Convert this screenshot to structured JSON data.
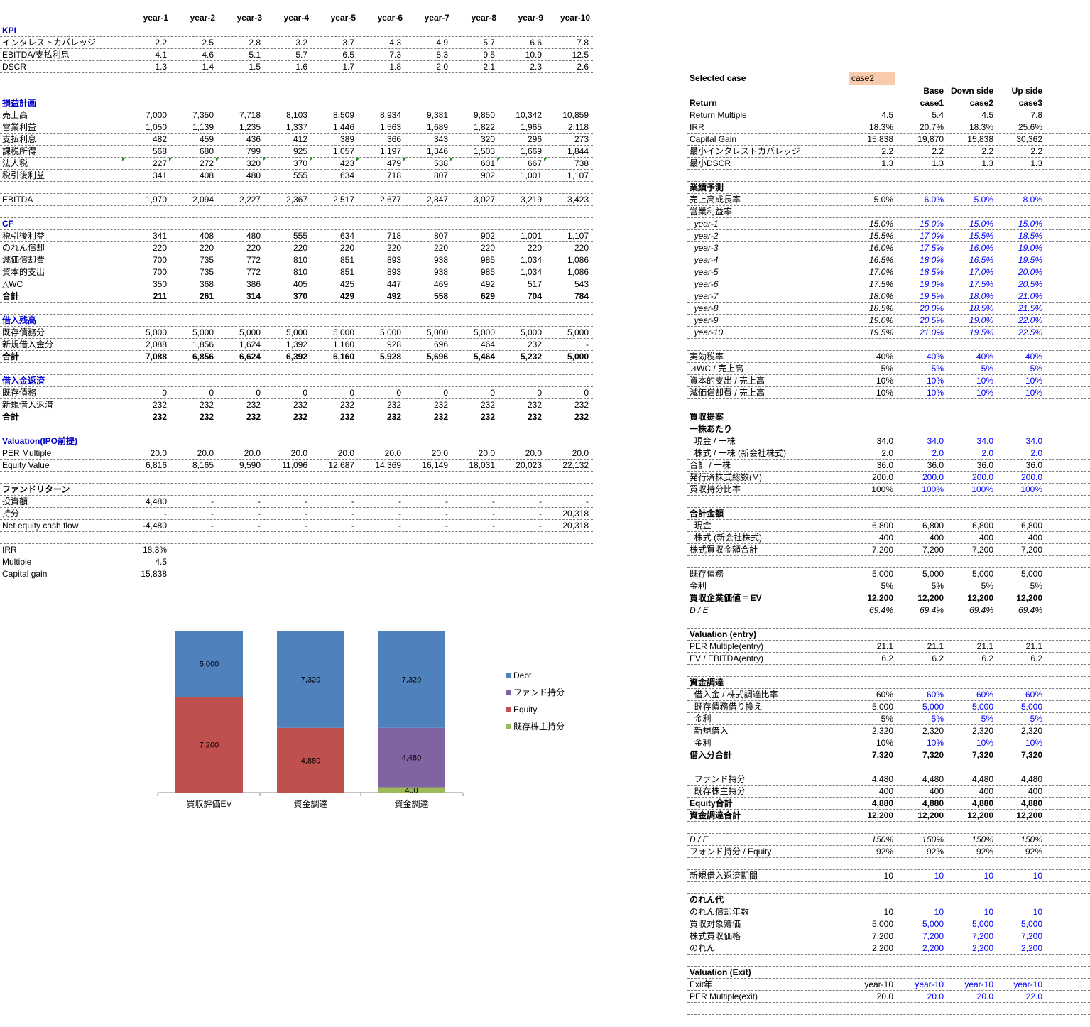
{
  "left": {
    "years": [
      "year-1",
      "year-2",
      "year-3",
      "year-4",
      "year-5",
      "year-6",
      "year-7",
      "year-8",
      "year-9",
      "year-10"
    ],
    "sections": [
      {
        "type": "header",
        "label": "KPI",
        "blue": true
      },
      {
        "label": "インタレストカバレッジ",
        "values": [
          "2.2",
          "2.5",
          "2.8",
          "3.2",
          "3.7",
          "4.3",
          "4.9",
          "5.7",
          "6.6",
          "7.8"
        ]
      },
      {
        "label": "EBITDA/支払利息",
        "values": [
          "4.1",
          "4.6",
          "5.1",
          "5.7",
          "6.5",
          "7.3",
          "8.3",
          "9.5",
          "10.9",
          "12.5"
        ]
      },
      {
        "label": "DSCR",
        "values": [
          "1.3",
          "1.4",
          "1.5",
          "1.6",
          "1.7",
          "1.8",
          "2.0",
          "2.1",
          "2.3",
          "2.6"
        ]
      },
      {
        "type": "blank"
      },
      {
        "type": "blank"
      },
      {
        "type": "header",
        "label": "損益計画",
        "blue": true
      },
      {
        "label": "売上高",
        "values": [
          "7,000",
          "7,350",
          "7,718",
          "8,103",
          "8,509",
          "8,934",
          "9,381",
          "9,850",
          "10,342",
          "10,859"
        ]
      },
      {
        "label": "営業利益",
        "values": [
          "1,050",
          "1,139",
          "1,235",
          "1,337",
          "1,446",
          "1,563",
          "1,689",
          "1,822",
          "1,965",
          "2,118"
        ]
      },
      {
        "label": "支払利息",
        "values": [
          "482",
          "459",
          "436",
          "412",
          "389",
          "366",
          "343",
          "320",
          "296",
          "273"
        ]
      },
      {
        "label": "課税所得",
        "values": [
          "568",
          "680",
          "799",
          "925",
          "1,057",
          "1,197",
          "1,346",
          "1,503",
          "1,669",
          "1,844"
        ]
      },
      {
        "label": "法人税",
        "values": [
          "227",
          "272",
          "320",
          "370",
          "423",
          "479",
          "538",
          "601",
          "667",
          "738"
        ],
        "flag": true
      },
      {
        "label": "税引後利益",
        "values": [
          "341",
          "408",
          "480",
          "555",
          "634",
          "718",
          "807",
          "902",
          "1,001",
          "1,107"
        ]
      },
      {
        "type": "blank"
      },
      {
        "label": "EBITDA",
        "values": [
          "1,970",
          "2,094",
          "2,227",
          "2,367",
          "2,517",
          "2,677",
          "2,847",
          "3,027",
          "3,219",
          "3,423"
        ]
      },
      {
        "type": "blank"
      },
      {
        "type": "header",
        "label": "CF",
        "blue": true
      },
      {
        "label": "税引後利益",
        "values": [
          "341",
          "408",
          "480",
          "555",
          "634",
          "718",
          "807",
          "902",
          "1,001",
          "1,107"
        ]
      },
      {
        "label": "のれん償却",
        "values": [
          "220",
          "220",
          "220",
          "220",
          "220",
          "220",
          "220",
          "220",
          "220",
          "220"
        ]
      },
      {
        "label": "減価償却費",
        "values": [
          "700",
          "735",
          "772",
          "810",
          "851",
          "893",
          "938",
          "985",
          "1,034",
          "1,086"
        ]
      },
      {
        "label": "資本的支出",
        "values": [
          "700",
          "735",
          "772",
          "810",
          "851",
          "893",
          "938",
          "985",
          "1,034",
          "1,086"
        ]
      },
      {
        "label": "△WC",
        "values": [
          "350",
          "368",
          "386",
          "405",
          "425",
          "447",
          "469",
          "492",
          "517",
          "543"
        ]
      },
      {
        "label": "合計",
        "values": [
          "211",
          "261",
          "314",
          "370",
          "429",
          "492",
          "558",
          "629",
          "704",
          "784"
        ],
        "bold": true
      },
      {
        "type": "blank"
      },
      {
        "type": "header",
        "label": "借入残高",
        "blue": true
      },
      {
        "label": " 既存債務分",
        "values": [
          "5,000",
          "5,000",
          "5,000",
          "5,000",
          "5,000",
          "5,000",
          "5,000",
          "5,000",
          "5,000",
          "5,000"
        ]
      },
      {
        "label": "新規借入金分",
        "values": [
          "2,088",
          "1,856",
          "1,624",
          "1,392",
          "1,160",
          "928",
          "696",
          "464",
          "232",
          "-"
        ]
      },
      {
        "label": "合計",
        "values": [
          "7,088",
          "6,856",
          "6,624",
          "6,392",
          "6,160",
          "5,928",
          "5,696",
          "5,464",
          "5,232",
          "5,000"
        ],
        "bold": true
      },
      {
        "type": "blank"
      },
      {
        "type": "header",
        "label": "借入金返済",
        "blue": true
      },
      {
        "label": "既存債務",
        "values": [
          "0",
          "0",
          "0",
          "0",
          "0",
          "0",
          "0",
          "0",
          "0",
          "0"
        ]
      },
      {
        "label": "新規借入返済",
        "values": [
          "232",
          "232",
          "232",
          "232",
          "232",
          "232",
          "232",
          "232",
          "232",
          "232"
        ]
      },
      {
        "label": "合計",
        "values": [
          "232",
          "232",
          "232",
          "232",
          "232",
          "232",
          "232",
          "232",
          "232",
          "232"
        ],
        "bold": true
      },
      {
        "type": "blank"
      },
      {
        "type": "header",
        "label": "Valuation(IPO前提)",
        "blue": true
      },
      {
        "label": "PER Multiple",
        "values": [
          "20.0",
          "20.0",
          "20.0",
          "20.0",
          "20.0",
          "20.0",
          "20.0",
          "20.0",
          "20.0",
          "20.0"
        ]
      },
      {
        "label": "Equity Value",
        "values": [
          "6,816",
          "8,165",
          "9,590",
          "11,096",
          "12,687",
          "14,369",
          "16,149",
          "18,031",
          "20,023",
          "22,132"
        ]
      },
      {
        "type": "blank"
      },
      {
        "type": "header",
        "label": "ファンドリターン",
        "blue": false
      },
      {
        "label": "投資額",
        "values": [
          "4,480",
          "-",
          "-",
          "-",
          "-",
          "-",
          "-",
          "-",
          "-",
          "-"
        ]
      },
      {
        "label": "持分",
        "values": [
          "-",
          "-",
          "-",
          "-",
          "-",
          "-",
          "-",
          "-",
          "-",
          "20,318"
        ]
      },
      {
        "label": "Net equity cash flow",
        "values": [
          "-4,480",
          "-",
          "-",
          "-",
          "-",
          "-",
          "-",
          "-",
          "-",
          "20,318"
        ]
      },
      {
        "type": "blank"
      },
      {
        "label": "IRR",
        "values": [
          "18.3%"
        ],
        "nob": true
      },
      {
        "label": "Multiple",
        "values": [
          "4.5"
        ],
        "nob": true
      },
      {
        "label": "Capital gain",
        "values": [
          "15,838"
        ],
        "nob": true
      }
    ]
  },
  "right": {
    "selected_label": "Selected case",
    "selected_value": "case2",
    "col_headers_top": [
      "Base",
      "Down side",
      "Up side"
    ],
    "col_headers_bottom": [
      "case1",
      "case2",
      "case3"
    ],
    "rows": [
      {
        "label": "Return",
        "bold": true,
        "values": [
          "",
          "",
          "",
          ""
        ],
        "header": true
      },
      {
        "label": "Return Multiple",
        "values": [
          "4.5",
          "5.4",
          "4.5",
          "7.8"
        ]
      },
      {
        "label": "IRR",
        "values": [
          "18.3%",
          "20.7%",
          "18.3%",
          "25.6%"
        ]
      },
      {
        "label": "Capital Gain",
        "values": [
          "15,838",
          "19,870",
          "15,838",
          "30,362"
        ]
      },
      {
        "label": "最小インタレストカバレッジ",
        "values": [
          "2.2",
          "2.2",
          "2.2",
          "2.2"
        ]
      },
      {
        "label": "最小DSCR",
        "values": [
          "1.3",
          "1.3",
          "1.3",
          "1.3"
        ]
      },
      {
        "type": "blank"
      },
      {
        "label": "業績予測",
        "bold": true,
        "values": []
      },
      {
        "label": "売上高成長率",
        "values": [
          "5.0%",
          "6.0%",
          "5.0%",
          "8.0%"
        ],
        "inp": true
      },
      {
        "label": "営業利益率",
        "values": []
      },
      {
        "label": "  year-1",
        "values": [
          "15.0%",
          "15.0%",
          "15.0%",
          "15.0%"
        ],
        "inp": true,
        "ital": true
      },
      {
        "label": "  year-2",
        "values": [
          "15.5%",
          "17.0%",
          "15.5%",
          "18.5%"
        ],
        "inp": true,
        "ital": true
      },
      {
        "label": "  year-3",
        "values": [
          "16.0%",
          "17.5%",
          "16.0%",
          "19.0%"
        ],
        "inp": true,
        "ital": true
      },
      {
        "label": "  year-4",
        "values": [
          "16.5%",
          "18.0%",
          "16.5%",
          "19.5%"
        ],
        "inp": true,
        "ital": true
      },
      {
        "label": "  year-5",
        "values": [
          "17.0%",
          "18.5%",
          "17.0%",
          "20.0%"
        ],
        "inp": true,
        "ital": true
      },
      {
        "label": "  year-6",
        "values": [
          "17.5%",
          "19.0%",
          "17.5%",
          "20.5%"
        ],
        "inp": true,
        "ital": true
      },
      {
        "label": "  year-7",
        "values": [
          "18.0%",
          "19.5%",
          "18.0%",
          "21.0%"
        ],
        "inp": true,
        "ital": true
      },
      {
        "label": "  year-8",
        "values": [
          "18.5%",
          "20.0%",
          "18.5%",
          "21.5%"
        ],
        "inp": true,
        "ital": true
      },
      {
        "label": "  year-9",
        "values": [
          "19.0%",
          "20.5%",
          "19.0%",
          "22.0%"
        ],
        "inp": true,
        "ital": true
      },
      {
        "label": "  year-10",
        "values": [
          "19.5%",
          "21.0%",
          "19.5%",
          "22.5%"
        ],
        "inp": true,
        "ital": true
      },
      {
        "type": "blank"
      },
      {
        "label": "実効税率",
        "values": [
          "40%",
          "40%",
          "40%",
          "40%"
        ],
        "inp": true
      },
      {
        "label": "⊿WC / 売上高",
        "values": [
          "5%",
          "5%",
          "5%",
          "5%"
        ],
        "inp": true
      },
      {
        "label": "資本的支出 / 売上高",
        "values": [
          "10%",
          "10%",
          "10%",
          "10%"
        ],
        "inp": true
      },
      {
        "label": "減価償却費 / 売上高",
        "values": [
          "10%",
          "10%",
          "10%",
          "10%"
        ],
        "inp": true
      },
      {
        "type": "blank"
      },
      {
        "label": "買収提案",
        "bold": true,
        "values": []
      },
      {
        "label": "一株あたり",
        "bold": true,
        "values": []
      },
      {
        "label": "  現金 / 一株",
        "values": [
          "34.0",
          "34.0",
          "34.0",
          "34.0"
        ],
        "inp": true
      },
      {
        "label": "  株式 / 一株 (新会社株式)",
        "values": [
          "2.0",
          "2.0",
          "2.0",
          "2.0"
        ],
        "inp": true
      },
      {
        "label": "合計 / 一株",
        "values": [
          "36.0",
          "36.0",
          "36.0",
          "36.0"
        ]
      },
      {
        "label": "発行済株式総数(M)",
        "values": [
          "200.0",
          "200.0",
          "200.0",
          "200.0"
        ],
        "inp": true
      },
      {
        "label": "買収持分比率",
        "values": [
          "100%",
          "100%",
          "100%",
          "100%"
        ],
        "inp": true
      },
      {
        "type": "blank"
      },
      {
        "label": "合計金額",
        "bold": true,
        "values": []
      },
      {
        "label": "  現金",
        "values": [
          "6,800",
          "6,800",
          "6,800",
          "6,800"
        ]
      },
      {
        "label": "  株式 (新会社株式)",
        "values": [
          "400",
          "400",
          "400",
          "400"
        ]
      },
      {
        "label": "株式買収金額合計",
        "values": [
          "7,200",
          "7,200",
          "7,200",
          "7,200"
        ]
      },
      {
        "type": "blank"
      },
      {
        "label": "既存債務",
        "values": [
          "5,000",
          "5,000",
          "5,000",
          "5,000"
        ]
      },
      {
        "label": "金利",
        "values": [
          "5%",
          "5%",
          "5%",
          "5%"
        ]
      },
      {
        "label": "買収企業価値 = EV",
        "bold": true,
        "values": [
          "12,200",
          "12,200",
          "12,200",
          "12,200"
        ]
      },
      {
        "label": "D / E",
        "ital": true,
        "values": [
          "69.4%",
          "69.4%",
          "69.4%",
          "69.4%"
        ]
      },
      {
        "type": "blank"
      },
      {
        "label": "Valuation (entry)",
        "bold": true,
        "values": []
      },
      {
        "label": "PER Multiple(entry)",
        "values": [
          "21.1",
          "21.1",
          "21.1",
          "21.1"
        ]
      },
      {
        "label": "EV / EBITDA(entry)",
        "values": [
          "6.2",
          "6.2",
          "6.2",
          "6.2"
        ]
      },
      {
        "type": "blank"
      },
      {
        "label": "資金調達",
        "bold": true,
        "values": []
      },
      {
        "label": "  借入金 / 株式調達比率",
        "values": [
          "60%",
          "60%",
          "60%",
          "60%"
        ],
        "inp": true
      },
      {
        "label": "  既存債務借り換え",
        "values": [
          "5,000",
          "5,000",
          "5,000",
          "5,000"
        ],
        "inp": true
      },
      {
        "label": "  金利",
        "values": [
          "5%",
          "5%",
          "5%",
          "5%"
        ],
        "inp": true
      },
      {
        "label": "  新規借入",
        "values": [
          "2,320",
          "2,320",
          "2,320",
          "2,320"
        ]
      },
      {
        "label": "  金利",
        "values": [
          "10%",
          "10%",
          "10%",
          "10%"
        ],
        "inp": true
      },
      {
        "label": "借入分合計",
        "bold": true,
        "values": [
          "7,320",
          "7,320",
          "7,320",
          "7,320"
        ]
      },
      {
        "type": "blank"
      },
      {
        "label": "  ファンド持分",
        "values": [
          "4,480",
          "4,480",
          "4,480",
          "4,480"
        ]
      },
      {
        "label": "  既存株主持分",
        "values": [
          "400",
          "400",
          "400",
          "400"
        ]
      },
      {
        "label": "Equity合計",
        "bold": true,
        "values": [
          "4,880",
          "4,880",
          "4,880",
          "4,880"
        ]
      },
      {
        "label": "資金調達合計",
        "bold": true,
        "values": [
          "12,200",
          "12,200",
          "12,200",
          "12,200"
        ]
      },
      {
        "type": "blank"
      },
      {
        "label": "D / E",
        "ital": true,
        "values": [
          "150%",
          "150%",
          "150%",
          "150%"
        ]
      },
      {
        "label": "フォンド持分 / Equity",
        "values": [
          "92%",
          "92%",
          "92%",
          "92%"
        ]
      },
      {
        "type": "blank"
      },
      {
        "label": "新規借入返済期間",
        "values": [
          "10",
          "10",
          "10",
          "10"
        ],
        "inp": true
      },
      {
        "type": "blank"
      },
      {
        "label": "のれん代",
        "bold": true,
        "values": []
      },
      {
        "label": "のれん償却年数",
        "values": [
          "10",
          "10",
          "10",
          "10"
        ],
        "inp": true
      },
      {
        "label": "買収対象簿価",
        "values": [
          "5,000",
          "5,000",
          "5,000",
          "5,000"
        ],
        "inp": true
      },
      {
        "label": "株式買収価格",
        "values": [
          "7,200",
          "7,200",
          "7,200",
          "7,200"
        ],
        "inp": true
      },
      {
        "label": "のれん",
        "values": [
          "2,200",
          "2,200",
          "2,200",
          "2,200"
        ],
        "inp": true
      },
      {
        "type": "blank"
      },
      {
        "label": "Valuation (Exit)",
        "bold": true,
        "values": []
      },
      {
        "label": "Exit年",
        "values": [
          "year-10",
          "year-10",
          "year-10",
          "year-10"
        ],
        "inp": true
      },
      {
        "label": "PER Multiple(exit)",
        "values": [
          "20.0",
          "20.0",
          "20.0",
          "22.0"
        ],
        "inp": true
      },
      {
        "type": "blank"
      }
    ]
  },
  "chart_data": {
    "type": "bar",
    "stacked": true,
    "categories": [
      "買収評価EV",
      "資金調達",
      "資金調達"
    ],
    "series": [
      {
        "name": "既存株主持分",
        "color": "#9bbb59",
        "values": [
          0,
          0,
          400
        ]
      },
      {
        "name": "Equity",
        "color": "#c0504d",
        "values": [
          7200,
          4880,
          0
        ]
      },
      {
        "name": "ファンド持分",
        "color": "#8064a2",
        "values": [
          0,
          0,
          4480
        ]
      },
      {
        "name": "Debt",
        "color": "#4f81bd",
        "values": [
          5000,
          7320,
          7320
        ]
      }
    ],
    "legend": [
      "Debt",
      "ファンド持分",
      "Equity",
      "既存株主持分"
    ],
    "legend_colors": [
      "#4f81bd",
      "#8064a2",
      "#c0504d",
      "#9bbb59"
    ],
    "ylim": [
      0,
      12200
    ],
    "legend_position": "right"
  }
}
